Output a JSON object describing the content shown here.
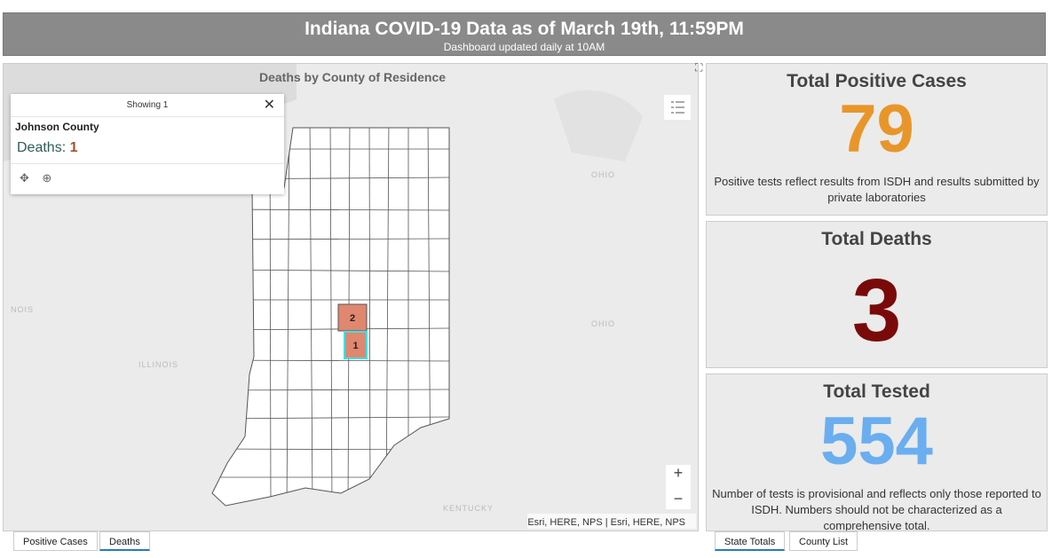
{
  "header": {
    "title": "Indiana COVID-19 Data as of March 19th, 11:59PM",
    "subtitle": "Dashboard updated daily at 10AM"
  },
  "map": {
    "title": "Deaths by County of Residence",
    "popup": {
      "showing": "Showing 1",
      "county": "Johnson County",
      "field": "Deaths:",
      "value": 1
    },
    "county_labels": [
      2,
      1
    ],
    "highlight_color": "#e0876f",
    "place_labels": [
      "OHIO",
      "OHIO",
      "ILLINOIS",
      "NOIS",
      "KENTUCKY"
    ],
    "attribution": "Esri, HERE, NPS | Esri, HERE, NPS",
    "zoom": [
      "+",
      "−"
    ]
  },
  "tabs_left": [
    "Positive Cases",
    "Deaths"
  ],
  "panels": [
    {
      "title": "Total Positive Cases",
      "value": 79,
      "color": "#e8962a",
      "note": "Positive tests reflect results from ISDH and results submitted by private laboratories"
    },
    {
      "title": "Total Deaths",
      "value": 3,
      "color": "#7a0a0a"
    },
    {
      "title": "Total Tested",
      "value": 554,
      "color": "#6aaef0",
      "note": "Number of tests is provisional and reflects only those reported to ISDH. Numbers should not be characterized as a comprehensive total."
    }
  ],
  "tabs_right": [
    "State Totals",
    "County List"
  ]
}
